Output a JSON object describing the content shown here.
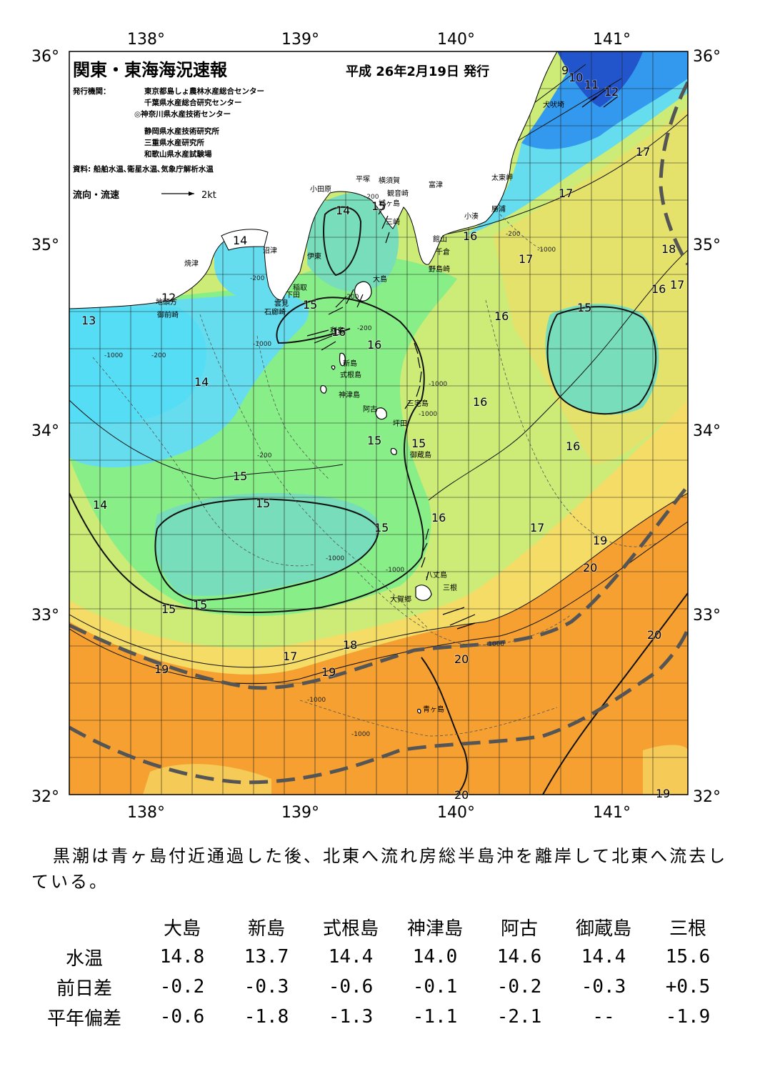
{
  "header": {
    "title": "関東・東海海況速報",
    "issued": "平成 26年2月19日 発行",
    "publisher_label": "発行機関：",
    "publishers": [
      "東京都島しょ農林水産総合センター",
      "千葉県水産総合研究センター",
      "◎神奈川県水産技術センター",
      "静岡県水産技術研究所",
      "三重県水産研究所",
      "和歌山県水産試験場"
    ],
    "sources": "資料: 船舶水温､衛星水温､気象庁解析水温",
    "legend_label": "流向・流速",
    "legend_scale": "2kt"
  },
  "map": {
    "lon_labels": [
      "138°",
      "139°",
      "140°",
      "141°"
    ],
    "lat_labels": [
      "36°",
      "35°",
      "34°",
      "33°",
      "32°"
    ],
    "isotherm_labels": [
      "9",
      "10",
      "11",
      "12",
      "17",
      "17",
      "17",
      "18",
      "16",
      "17",
      "16",
      "16",
      "15",
      "14",
      "12",
      "13",
      "14",
      "15",
      "14",
      "15",
      "16",
      "16",
      "15",
      "15",
      "16",
      "16",
      "14",
      "15",
      "15",
      "15",
      "16",
      "17",
      "19",
      "20",
      "15",
      "15",
      "17",
      "18",
      "19",
      "20",
      "19",
      "20",
      "20",
      "19"
    ],
    "depth_labels": [
      "-200",
      "-1000",
      "-200",
      "-200",
      "-1000",
      "-200",
      "-200",
      "-1000",
      "-1000",
      "-1000",
      "-1000",
      "-200",
      "-1000",
      "-1000",
      "-1000",
      "-200",
      "-1000"
    ],
    "place_names": [
      "犬吠埼",
      "太東岬",
      "勝浦",
      "小湊",
      "館山",
      "千倉",
      "野島崎",
      "富津",
      "観音崎",
      "城ヶ島",
      "三崎",
      "横須賀",
      "平塚",
      "小田原",
      "沼津",
      "伊東",
      "稲取",
      "下田",
      "雲見",
      "石廊崎",
      "焼津",
      "地頭方",
      "御前崎",
      "利島",
      "新島",
      "式根島",
      "神津島",
      "三宅島",
      "阿古",
      "坪田",
      "御蔵島",
      "八丈島",
      "三根",
      "大賀郷",
      "青ヶ島",
      "大島"
    ],
    "colors": {
      "deep_blue": "#2255cc",
      "cyan": "#66ddee",
      "teal": "#77ddbb",
      "green": "#88ee88",
      "yellow_green": "#cceb77",
      "yellow": "#f5dc66",
      "orange": "#f5a030",
      "kuroshio_line": "#555555"
    }
  },
  "summary": "黒潮は青ヶ島付近通過した後、北東へ流れ房総半島沖を離岸して北東へ流去している。",
  "table": {
    "columns": [
      "大島",
      "新島",
      "式根島",
      "神津島",
      "阿古",
      "御蔵島",
      "三根"
    ],
    "rows": [
      {
        "label": "水温",
        "values": [
          "14.8",
          "13.7",
          "14.4",
          "14.0",
          "14.6",
          "14.4",
          "15.6"
        ]
      },
      {
        "label": "前日差",
        "values": [
          "-0.2",
          "-0.3",
          "-0.6",
          "-0.1",
          "-0.2",
          "-0.3",
          "+0.5"
        ]
      },
      {
        "label": "平年偏差",
        "values": [
          "-0.6",
          "-1.8",
          "-1.3",
          "-1.1",
          "-2.1",
          "--",
          "-1.9"
        ]
      }
    ]
  }
}
